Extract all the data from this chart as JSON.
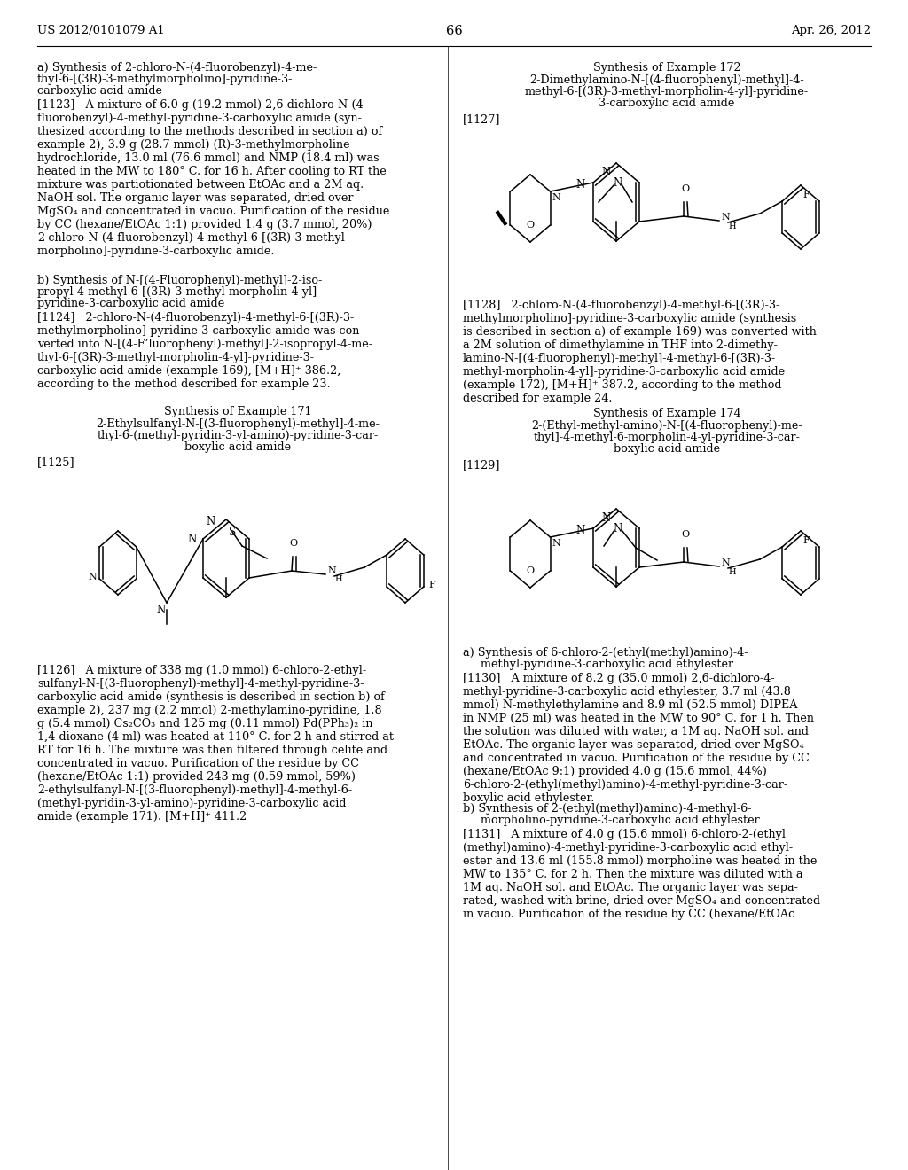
{
  "page_number": "66",
  "patent_number": "US 2012/0101079 A1",
  "patent_date": "Apr. 26, 2012",
  "background_color": "#ffffff"
}
